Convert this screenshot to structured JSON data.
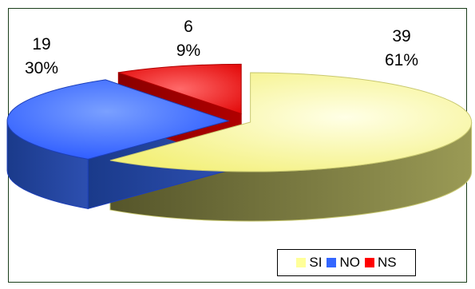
{
  "chart_data": {
    "type": "pie",
    "title": "",
    "categories": [
      "SI",
      "NO",
      "NS"
    ],
    "values": [
      39,
      19,
      6
    ],
    "percent_labels": [
      "61%",
      "30%",
      "9%"
    ],
    "value_labels": [
      "39",
      "19",
      "6"
    ],
    "colors": [
      "#ffff99",
      "#3366ff",
      "#ff0000"
    ],
    "legend_position": "bottom-right",
    "style": "3d-exploded"
  }
}
